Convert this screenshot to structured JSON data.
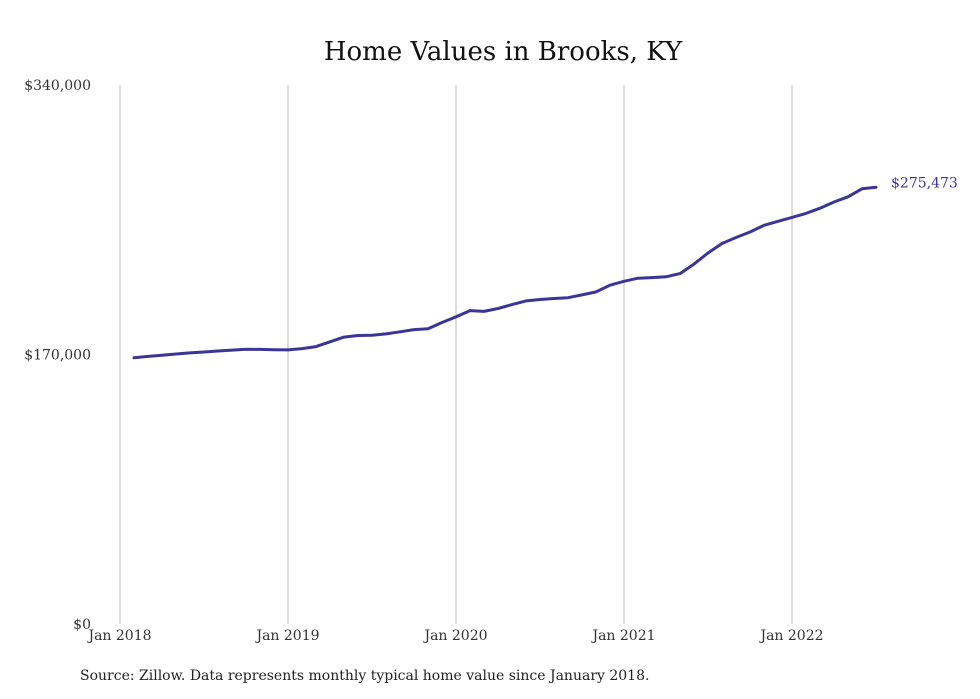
{
  "chart_data": {
    "type": "line",
    "title": "Home Values in Brooks, KY",
    "xlabel": "",
    "ylabel": "",
    "ylim": [
      0,
      340000
    ],
    "yticks": [
      {
        "value": 0,
        "label": "$0"
      },
      {
        "value": 170000,
        "label": "$170,000"
      },
      {
        "value": 340000,
        "label": "$340,000"
      }
    ],
    "xticks": [
      {
        "value": "2018-01",
        "label": "Jan 2018"
      },
      {
        "value": "2019-01",
        "label": "Jan 2019"
      },
      {
        "value": "2020-01",
        "label": "Jan 2020"
      },
      {
        "value": "2021-01",
        "label": "Jan 2021"
      },
      {
        "value": "2022-01",
        "label": "Jan 2022"
      }
    ],
    "grid": "vertical",
    "line_color": "#3b3598",
    "series": [
      {
        "x": [
          "2018-02",
          "2018-03",
          "2018-04",
          "2018-05",
          "2018-06",
          "2018-07",
          "2018-08",
          "2018-09",
          "2018-10",
          "2018-11",
          "2018-12",
          "2019-01",
          "2019-02",
          "2019-03",
          "2019-04",
          "2019-05",
          "2019-06",
          "2019-07",
          "2019-08",
          "2019-09",
          "2019-10",
          "2019-11",
          "2019-12",
          "2020-01",
          "2020-02",
          "2020-03",
          "2020-04",
          "2020-05",
          "2020-06",
          "2020-07",
          "2020-08",
          "2020-09",
          "2020-10",
          "2020-11",
          "2020-12",
          "2021-01",
          "2021-02",
          "2021-03",
          "2021-04",
          "2021-05",
          "2021-06",
          "2021-07",
          "2021-08",
          "2021-09",
          "2021-10",
          "2021-11",
          "2021-12",
          "2022-01",
          "2022-02",
          "2022-03",
          "2022-04",
          "2022-05",
          "2022-06",
          "2022-07"
        ],
        "values": [
          168000,
          168800,
          169500,
          170300,
          171000,
          171600,
          172200,
          172800,
          173300,
          173200,
          173000,
          172900,
          173700,
          175000,
          178000,
          181000,
          182000,
          182200,
          183000,
          184300,
          185700,
          186200,
          190200,
          193700,
          197700,
          197200,
          199000,
          201500,
          203800,
          204700,
          205300,
          205800,
          207600,
          209500,
          213700,
          216200,
          218100,
          218500,
          219000,
          221000,
          227000,
          234000,
          240000,
          243800,
          247300,
          251500,
          254000,
          256500,
          259000,
          262300,
          266200,
          269500,
          274500,
          275473
        ]
      }
    ],
    "end_label": "$275,473"
  },
  "footer": {
    "source": "Source: Zillow. Data represents monthly typical home value since January 2018."
  }
}
